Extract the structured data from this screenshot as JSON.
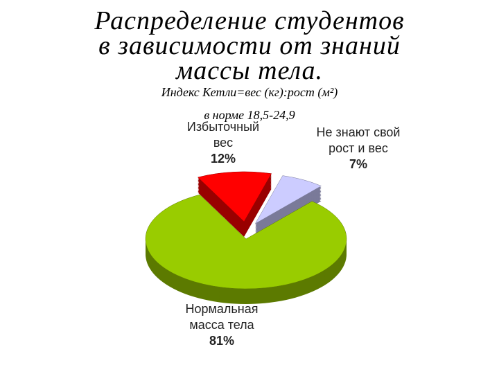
{
  "chart_data": {
    "type": "pie3d",
    "title": "Распределение студентов\nв зависимости от знаний\nмассы тела.",
    "subtitle": "Индекс Кетли=вес (кг):рост (м²)",
    "note": "в норме 18,5-24,9",
    "categories": [
      "Избыточный\nвес",
      "Не знают свой\nрост и вес",
      "Нормальная\nмасса тела"
    ],
    "values": [
      12,
      7,
      81
    ],
    "value_labels": [
      "12%",
      "7%",
      "81%"
    ],
    "colors": [
      "#ff0000",
      "#ccccff",
      "#99cc00"
    ],
    "exploded": [
      true,
      true,
      false
    ]
  }
}
